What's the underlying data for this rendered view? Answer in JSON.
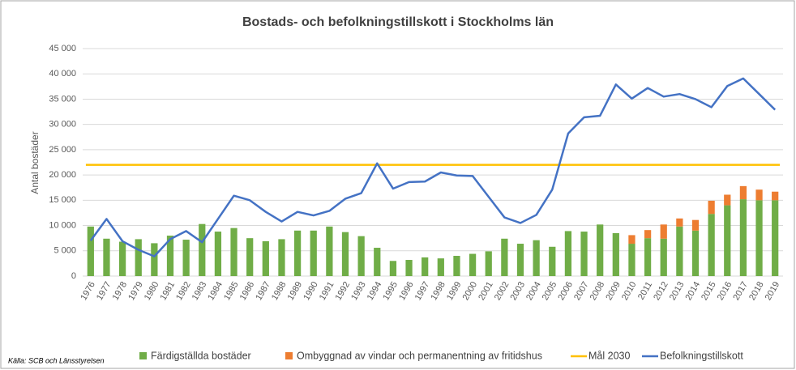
{
  "chart_data": {
    "type": "bar-line",
    "title": "Bostads- och befolkningstillskott i Stockholms län",
    "y_label": "Antal bostäder",
    "source": "Källa: SCB och Länsstyrelsen",
    "categories": [
      "1976",
      "1977",
      "1978",
      "1979",
      "1980",
      "1981",
      "1982",
      "1983",
      "1984",
      "1985",
      "1986",
      "1987",
      "1988",
      "1989",
      "1990",
      "1991",
      "1992",
      "1993",
      "1994",
      "1995",
      "1996",
      "1997",
      "1998",
      "1999",
      "2000",
      "2001",
      "2002",
      "2003",
      "2004",
      "2005",
      "2006",
      "2007",
      "2008",
      "2009",
      "2010",
      "2011",
      "2012",
      "2013",
      "2014",
      "2015",
      "2016",
      "2017",
      "2018",
      "2019"
    ],
    "ylim": [
      0,
      45000
    ],
    "yticks": [
      {
        "value": 0,
        "label": "0"
      },
      {
        "value": 5000,
        "label": "5 000"
      },
      {
        "value": 10000,
        "label": "10 000"
      },
      {
        "value": 15000,
        "label": "15 000"
      },
      {
        "value": 20000,
        "label": "20 000"
      },
      {
        "value": 25000,
        "label": "25 000"
      },
      {
        "value": 30000,
        "label": "30 000"
      },
      {
        "value": 35000,
        "label": "35 000"
      },
      {
        "value": 40000,
        "label": "40 000"
      },
      {
        "value": 45000,
        "label": "45 000"
      }
    ],
    "grid": true,
    "legend": "bottom",
    "series": [
      {
        "name": "Färdigställda bostäder",
        "type": "bar",
        "stack": true,
        "color": "#70ad47",
        "values": [
          9800,
          7400,
          6800,
          7300,
          6500,
          8000,
          7200,
          10300,
          8800,
          9500,
          7500,
          6900,
          7300,
          9000,
          9000,
          9800,
          8700,
          7900,
          5600,
          3000,
          3200,
          3700,
          3500,
          4000,
          4400,
          4900,
          7400,
          6400,
          7100,
          5800,
          8900,
          8800,
          10200,
          8500,
          6400,
          7500,
          7400,
          9800,
          9000,
          12300,
          14000,
          15200,
          15000,
          15000
        ]
      },
      {
        "name": "Ombyggnad av vindar och  permanentning av fritidshus",
        "type": "bar",
        "stack": true,
        "color": "#ed7d31",
        "values": [
          0,
          0,
          0,
          0,
          0,
          0,
          0,
          0,
          0,
          0,
          0,
          0,
          0,
          0,
          0,
          0,
          0,
          0,
          0,
          0,
          0,
          0,
          0,
          0,
          0,
          0,
          0,
          0,
          0,
          0,
          0,
          0,
          0,
          0,
          1700,
          1600,
          2800,
          1600,
          2100,
          2600,
          2100,
          2600,
          2100,
          1700
        ]
      },
      {
        "name": "Mål 2030",
        "type": "hline",
        "color": "#ffc000",
        "value": 22000
      },
      {
        "name": "Befolkningstillskott",
        "type": "line",
        "color": "#4472c4",
        "values": [
          7000,
          11300,
          6900,
          5200,
          3900,
          7300,
          8900,
          6700,
          11300,
          15900,
          15000,
          12700,
          10800,
          12700,
          12000,
          12900,
          15300,
          16400,
          22300,
          17300,
          18600,
          18700,
          20500,
          19900,
          19800,
          15700,
          11600,
          10500,
          12100,
          17100,
          28200,
          31400,
          31700,
          37900,
          35100,
          37200,
          35500,
          36000,
          35000,
          33400,
          37600,
          39100,
          36000,
          32900
        ]
      }
    ]
  }
}
